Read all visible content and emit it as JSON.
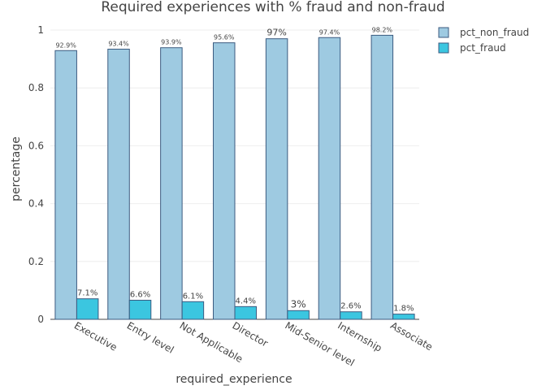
{
  "chart_data": {
    "type": "bar",
    "title": "Required experiences with % fraud and non-fraud",
    "xlabel": "required_experience",
    "ylabel": "percentage",
    "ylim": [
      0,
      1
    ],
    "y_ticks": [
      "0",
      "0.2",
      "0.4",
      "0.6",
      "0.8",
      "1"
    ],
    "grid": true,
    "legend_position": "top-right",
    "categories": [
      "Executive",
      "Entry level",
      "Not Applicable",
      "Director",
      "Mid-Senior level",
      "Internship",
      "Associate"
    ],
    "series": [
      {
        "name": "pct_non_fraud",
        "color": "#9ecae1",
        "values": [
          0.929,
          0.934,
          0.939,
          0.956,
          0.97,
          0.974,
          0.982
        ],
        "labels": [
          "92.9%",
          "93.4%",
          "93.9%",
          "95.6%",
          "97%",
          "97.4%",
          "98.2%"
        ]
      },
      {
        "name": "pct_fraud",
        "color": "#3bc6e0",
        "values": [
          0.071,
          0.066,
          0.061,
          0.044,
          0.03,
          0.026,
          0.018
        ],
        "labels": [
          "7.1%",
          "6.6%",
          "6.1%",
          "4.4%",
          "3%",
          "2.6%",
          "1.8%"
        ]
      }
    ]
  }
}
